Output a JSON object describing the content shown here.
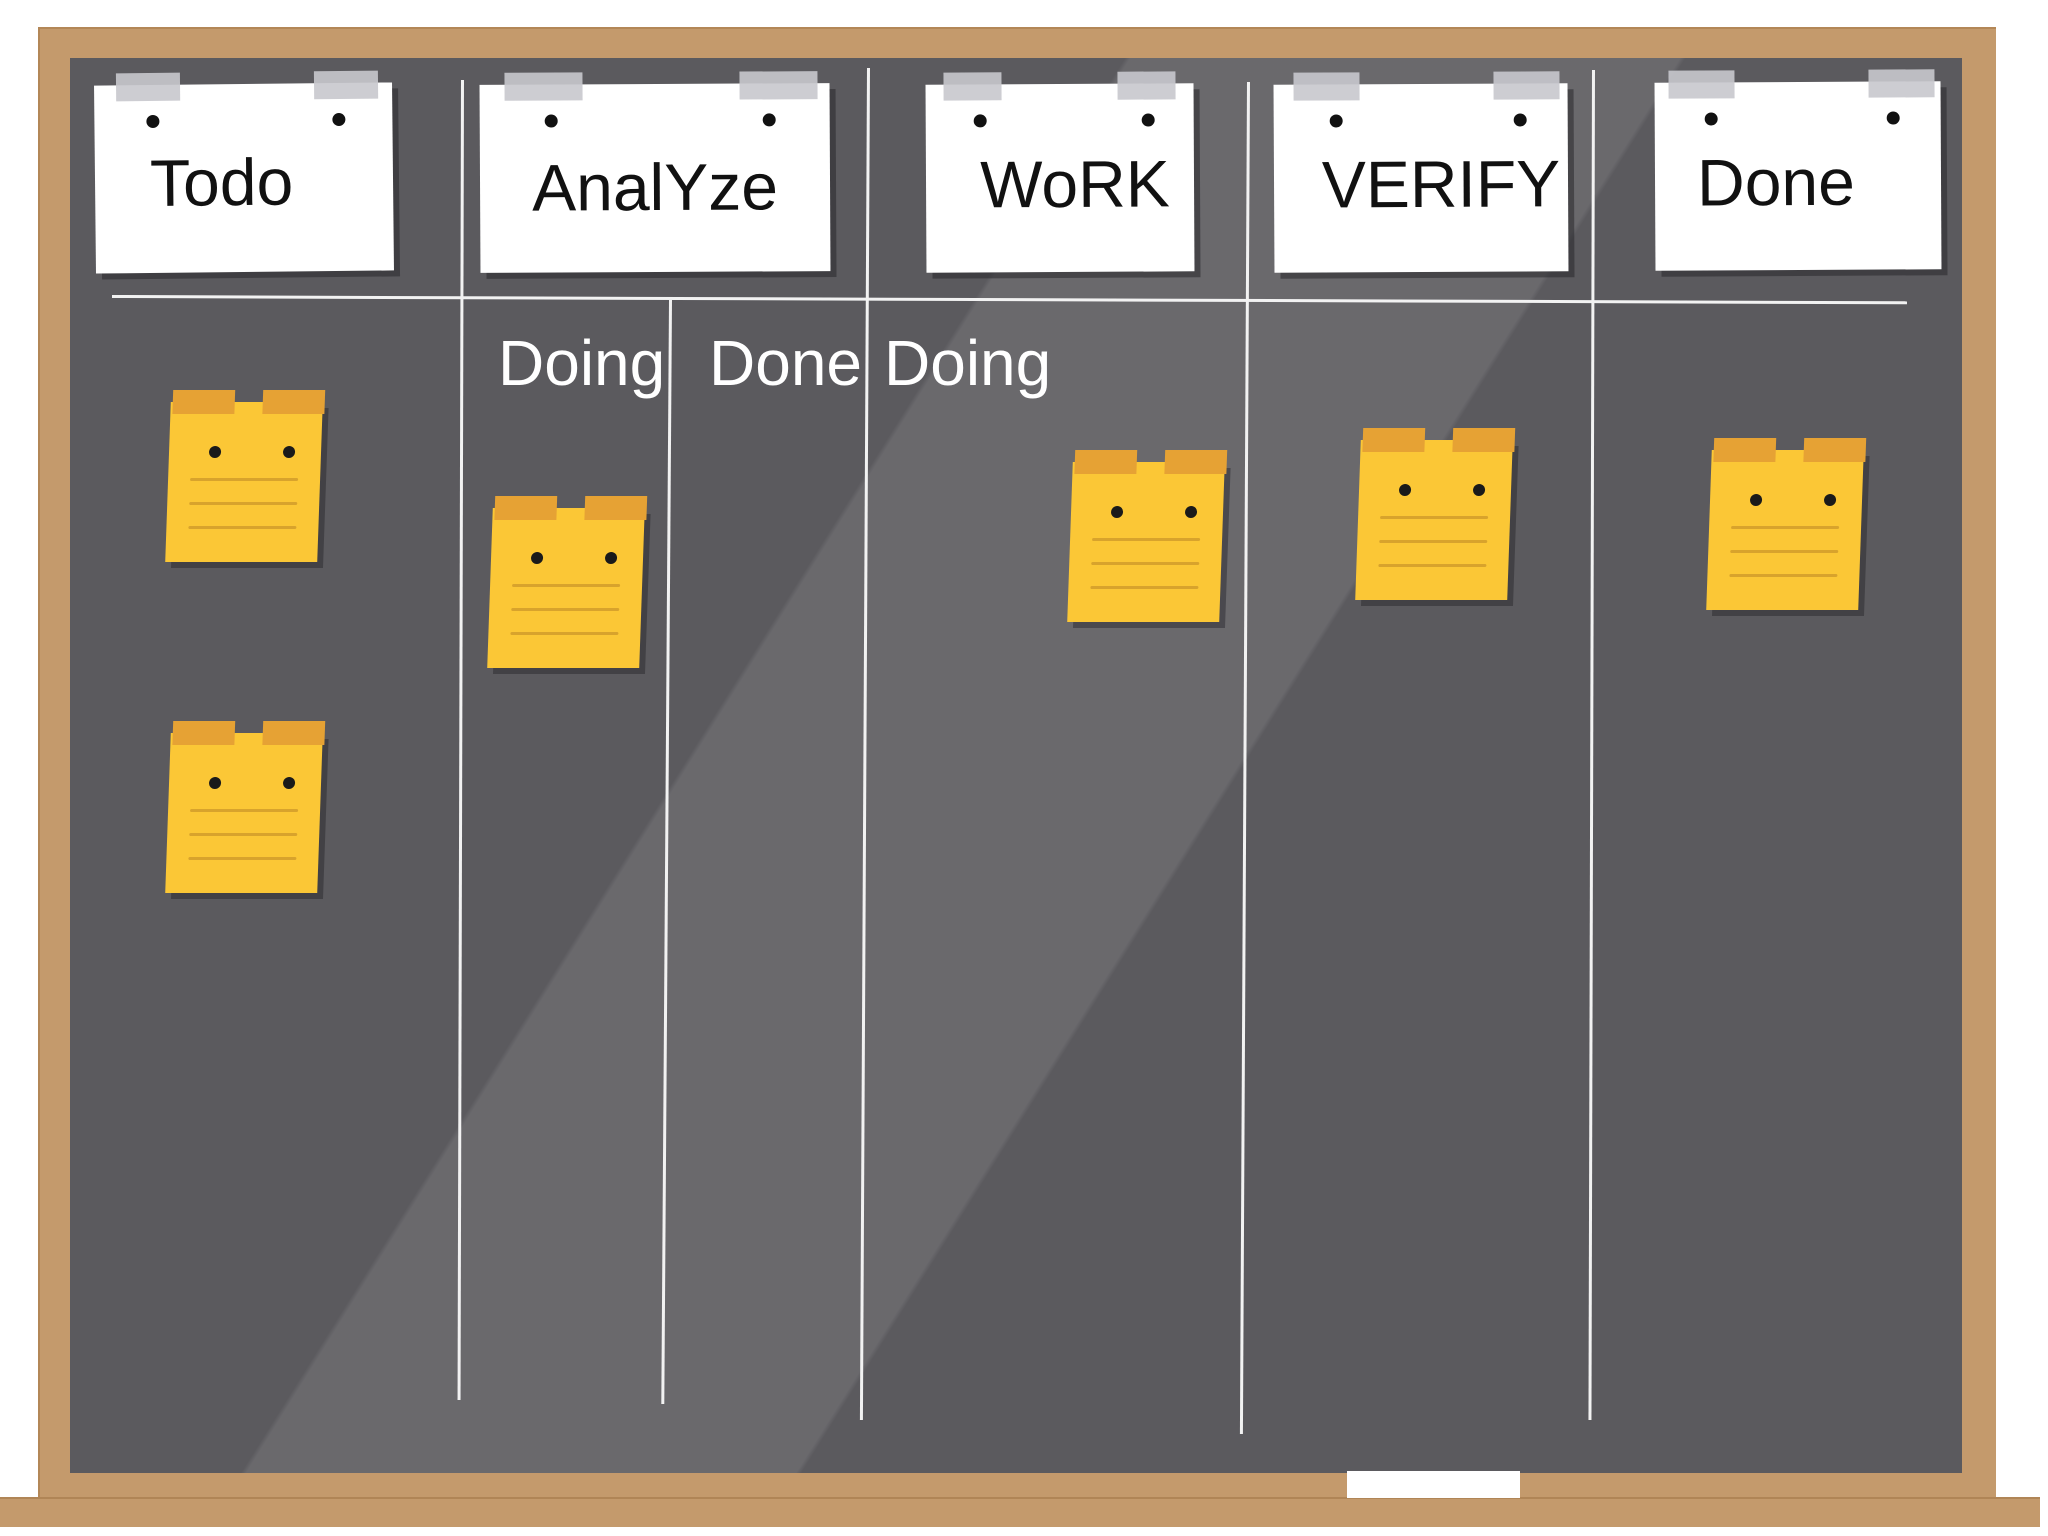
{
  "columns": [
    {
      "title": "Todo"
    },
    {
      "title": "AnalYze"
    },
    {
      "title": "WoRK"
    },
    {
      "title": "VERIFY"
    },
    {
      "title": "Done"
    }
  ],
  "sublabels": {
    "analyze_doing": "Doing",
    "analyze_done": "Done",
    "work_doing": "Doing"
  },
  "colors": {
    "board": "#5b5a5e",
    "frame": "#c49a6c",
    "sticky_note": "#fbc736",
    "sticky_tape": "#e6a234",
    "card": "#ffffff"
  }
}
